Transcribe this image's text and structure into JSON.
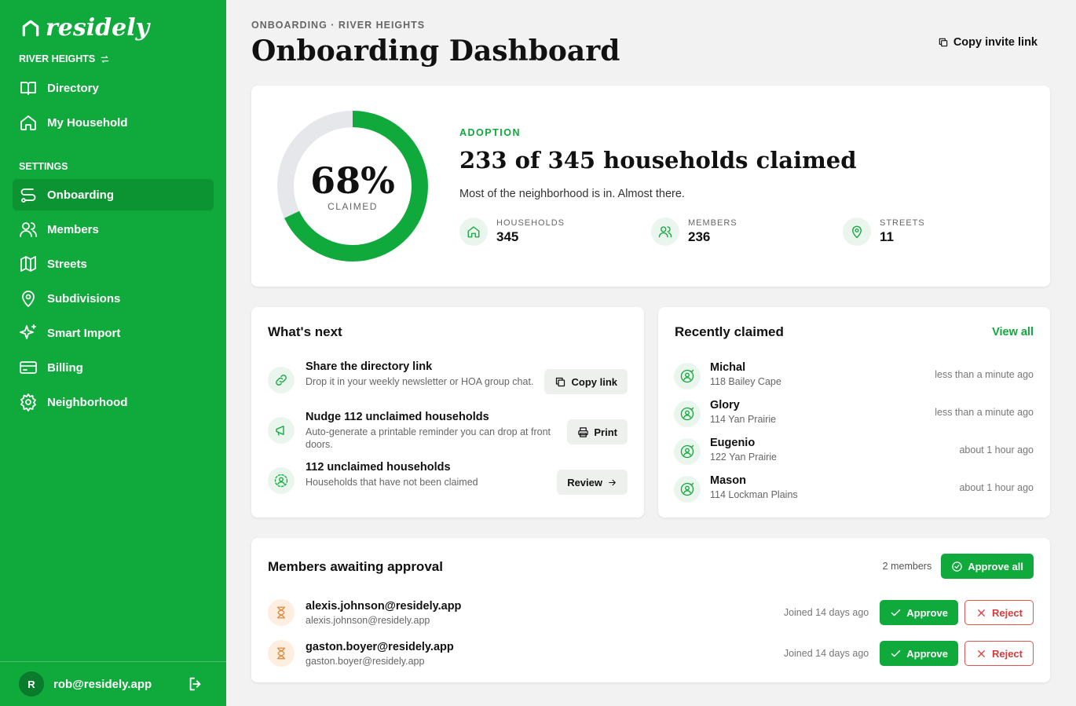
{
  "sidebar": {
    "brand": "residely",
    "community": "RIVER HEIGHTS",
    "nav": [
      "Directory",
      "My Household"
    ],
    "settings_heading": "SETTINGS",
    "settings_nav": [
      "Onboarding",
      "Members",
      "Streets",
      "Subdivisions",
      "Smart Import",
      "Billing",
      "Neighborhood"
    ],
    "user": {
      "initial": "R",
      "email": "rob@residely.app"
    }
  },
  "header": {
    "breadcrumb": "ONBOARDING · RIVER HEIGHTS",
    "title": "Onboarding Dashboard",
    "action": "Copy invite link"
  },
  "adoption": {
    "percent": "68%",
    "percent_label": "CLAIMED",
    "eyebrow": "ADOPTION",
    "headline": "233 of 345 households claimed",
    "subtitle": "Most of the neighborhood is in. Almost there.",
    "stats": [
      {
        "label": "HOUSEHOLDS",
        "value": "345"
      },
      {
        "label": "MEMBERS",
        "value": "236"
      },
      {
        "label": "STREETS",
        "value": "11"
      }
    ]
  },
  "whats_next": {
    "title": "What's next",
    "items": [
      {
        "title": "Share the directory link",
        "description": "Drop it in your weekly newsletter or HOA group chat.",
        "action": "Copy link"
      },
      {
        "title": "Nudge 112 unclaimed households",
        "description": "Auto-generate a printable reminder you can drop at front doors.",
        "action": "Print"
      },
      {
        "title": "112 unclaimed households",
        "description": "Households that have not been claimed",
        "action": "Review"
      }
    ]
  },
  "recently_claimed": {
    "title": "Recently claimed",
    "link": "View all",
    "items": [
      {
        "name": "Michal",
        "address": "118 Bailey Cape",
        "time": "less than a minute ago"
      },
      {
        "name": "Glory",
        "address": "114 Yan Prairie",
        "time": "less than a minute ago"
      },
      {
        "name": "Eugenio",
        "address": "122 Yan Prairie",
        "time": "about 1 hour ago"
      },
      {
        "name": "Mason",
        "address": "114 Lockman Plains",
        "time": "about 1 hour ago"
      }
    ]
  },
  "approvals": {
    "title": "Members awaiting approval",
    "count": "2 members",
    "approve_all": "Approve all",
    "items": [
      {
        "email": "alexis.johnson@residely.app",
        "sub": "alexis.johnson@residely.app",
        "joined": "Joined 14 days ago",
        "approve": "Approve",
        "reject": "Reject"
      },
      {
        "email": "gaston.boyer@residely.app",
        "sub": "gaston.boyer@residely.app",
        "joined": "Joined 14 days ago",
        "approve": "Approve",
        "reject": "Reject"
      }
    ]
  }
}
